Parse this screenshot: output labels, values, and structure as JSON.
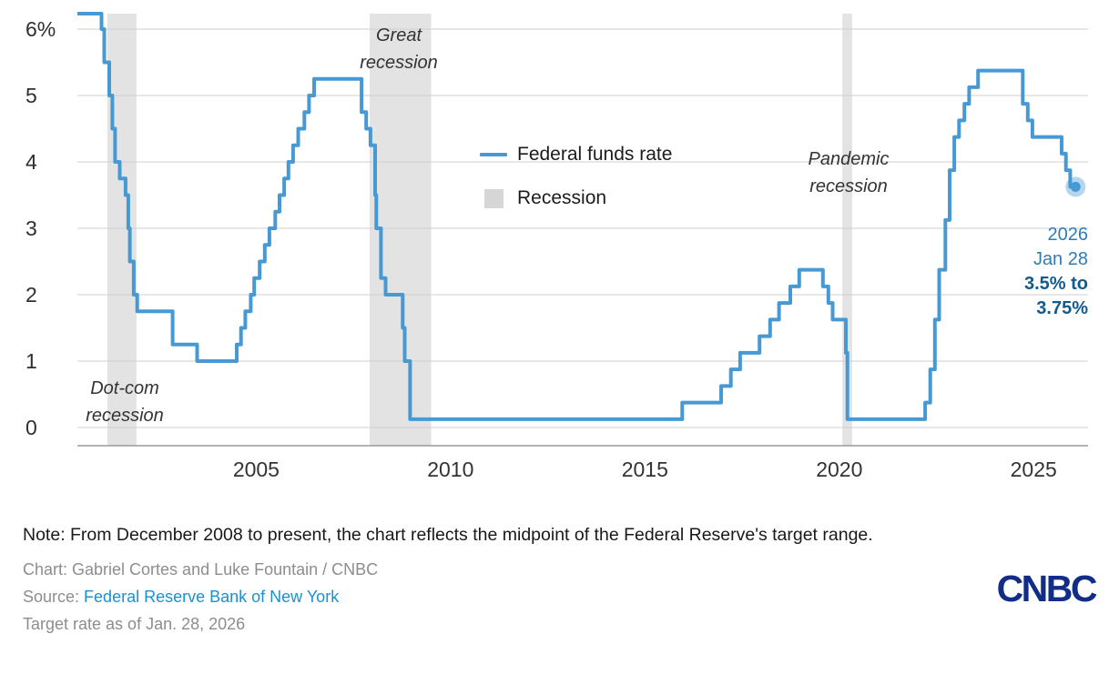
{
  "chart_data": {
    "type": "line",
    "title": "Federal funds rate",
    "line_color": "#4799d3",
    "recession_color": "#e3e3e3",
    "grid_color": "#cfcfcf",
    "axis_color": "#9a9a9a",
    "xlim": [
      2000.4,
      2026.4
    ],
    "ylim": [
      0,
      6.5
    ],
    "x_ticks": [
      2005,
      2010,
      2015,
      2020,
      2025
    ],
    "y_ticks": [
      {
        "value": 0,
        "label": "0"
      },
      {
        "value": 1,
        "label": "1"
      },
      {
        "value": 2,
        "label": "2"
      },
      {
        "value": 3,
        "label": "3"
      },
      {
        "value": 4,
        "label": "4"
      },
      {
        "value": 5,
        "label": "5"
      },
      {
        "value": 6,
        "label": "6%"
      }
    ],
    "series": [
      {
        "name": "Federal funds rate",
        "step": "after",
        "points": [
          [
            2000.4,
            6.5
          ],
          [
            2001.02,
            6.0
          ],
          [
            2001.09,
            5.5
          ],
          [
            2001.22,
            5.0
          ],
          [
            2001.3,
            4.5
          ],
          [
            2001.37,
            4.0
          ],
          [
            2001.49,
            3.75
          ],
          [
            2001.64,
            3.5
          ],
          [
            2001.71,
            3.0
          ],
          [
            2001.75,
            2.5
          ],
          [
            2001.85,
            2.0
          ],
          [
            2001.94,
            1.75
          ],
          [
            2002.85,
            1.25
          ],
          [
            2003.48,
            1.0
          ],
          [
            2004.5,
            1.25
          ],
          [
            2004.61,
            1.5
          ],
          [
            2004.72,
            1.75
          ],
          [
            2004.86,
            2.0
          ],
          [
            2004.95,
            2.25
          ],
          [
            2005.09,
            2.5
          ],
          [
            2005.22,
            2.75
          ],
          [
            2005.34,
            3.0
          ],
          [
            2005.49,
            3.25
          ],
          [
            2005.6,
            3.5
          ],
          [
            2005.72,
            3.75
          ],
          [
            2005.83,
            4.0
          ],
          [
            2005.95,
            4.25
          ],
          [
            2006.08,
            4.5
          ],
          [
            2006.24,
            4.75
          ],
          [
            2006.36,
            5.0
          ],
          [
            2006.49,
            5.25
          ],
          [
            2007.71,
            4.75
          ],
          [
            2007.83,
            4.5
          ],
          [
            2007.94,
            4.25
          ],
          [
            2008.06,
            3.5
          ],
          [
            2008.09,
            3.0
          ],
          [
            2008.21,
            2.25
          ],
          [
            2008.33,
            2.0
          ],
          [
            2008.77,
            1.5
          ],
          [
            2008.82,
            1.0
          ],
          [
            2008.96,
            0.125
          ],
          [
            2015.96,
            0.375
          ],
          [
            2016.96,
            0.625
          ],
          [
            2017.21,
            0.875
          ],
          [
            2017.45,
            1.125
          ],
          [
            2017.95,
            1.375
          ],
          [
            2018.22,
            1.625
          ],
          [
            2018.45,
            1.875
          ],
          [
            2018.74,
            2.125
          ],
          [
            2018.97,
            2.375
          ],
          [
            2019.58,
            2.125
          ],
          [
            2019.72,
            1.875
          ],
          [
            2019.83,
            1.625
          ],
          [
            2020.17,
            1.125
          ],
          [
            2020.21,
            0.125
          ],
          [
            2022.21,
            0.375
          ],
          [
            2022.34,
            0.875
          ],
          [
            2022.46,
            1.625
          ],
          [
            2022.57,
            2.375
          ],
          [
            2022.73,
            3.125
          ],
          [
            2022.84,
            3.875
          ],
          [
            2022.96,
            4.375
          ],
          [
            2023.08,
            4.625
          ],
          [
            2023.22,
            4.875
          ],
          [
            2023.34,
            5.125
          ],
          [
            2023.57,
            5.375
          ],
          [
            2024.72,
            4.875
          ],
          [
            2024.85,
            4.625
          ],
          [
            2024.97,
            4.375
          ],
          [
            2025.72,
            4.125
          ],
          [
            2025.83,
            3.875
          ],
          [
            2025.94,
            3.625
          ],
          [
            2026.08,
            3.625
          ]
        ]
      }
    ],
    "recessions": [
      {
        "name": "Dot-com recession",
        "start": 2001.17,
        "end": 2001.92
      },
      {
        "name": "Great recession",
        "start": 2007.92,
        "end": 2009.5
      },
      {
        "name": "Pandemic recession",
        "start": 2020.08,
        "end": 2020.33
      }
    ],
    "end_point": {
      "x": 2026.08,
      "y": 3.625
    }
  },
  "legend": {
    "line_label": "Federal funds rate",
    "recession_label": "Recession"
  },
  "annotations": {
    "great": [
      "Great",
      "recession"
    ],
    "dot_com": [
      "Dot-com",
      "recession"
    ],
    "pandemic": [
      "Pandemic",
      "recession"
    ]
  },
  "end_label": {
    "year": "2026",
    "date": "Jan 28",
    "range_line1": "3.5% to",
    "range_line2": "3.75%"
  },
  "note": "Note: From December 2008 to present, the chart reflects the midpoint of the Federal Reserve's target range.",
  "credits": {
    "chart": "Chart: Gabriel Cortes and Luke Fountain / CNBC",
    "source_label": "Source: ",
    "source_link": "Federal Reserve Bank of New York",
    "target": "Target rate as of Jan. 28, 2026"
  },
  "logo": {
    "text": "CNBC"
  },
  "brand": {
    "cnbc_navy": "#112d87",
    "link_blue": "#1c8fd1",
    "line_blue": "#4799d3",
    "end_label_blue": "#2e7cb5",
    "end_label_dark": "#135a8c"
  }
}
